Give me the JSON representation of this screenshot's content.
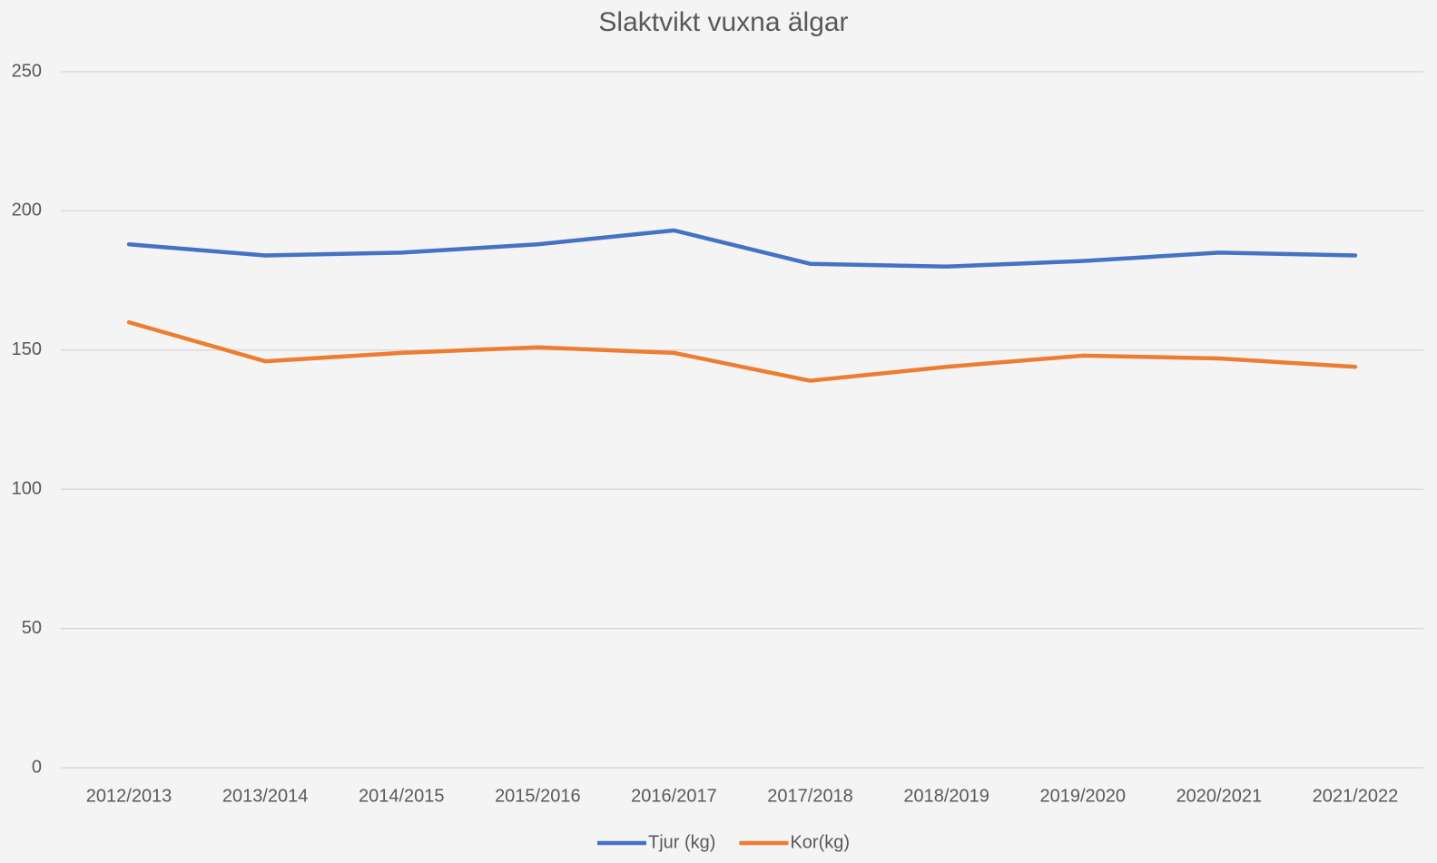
{
  "chart_data": {
    "type": "line",
    "title": "Slaktvikt vuxna älgar",
    "categories": [
      "2012/2013",
      "2013/2014",
      "2014/2015",
      "2015/2016",
      "2016/2017",
      "2017/2018",
      "2018/2019",
      "2019/2020",
      "2020/2021",
      "2021/2022"
    ],
    "series": [
      {
        "name": "Tjur (kg)",
        "color": "#4472c4",
        "values": [
          188,
          184,
          185,
          188,
          193,
          181,
          180,
          182,
          185,
          184
        ]
      },
      {
        "name": "Kor(kg)",
        "color": "#ed7d31",
        "values": [
          160,
          146,
          149,
          151,
          149,
          139,
          144,
          148,
          147,
          144
        ]
      }
    ],
    "ylim": [
      0,
      250
    ],
    "yticks": [
      0,
      50,
      100,
      150,
      200,
      250
    ],
    "grid": true,
    "legend": "bottom"
  }
}
